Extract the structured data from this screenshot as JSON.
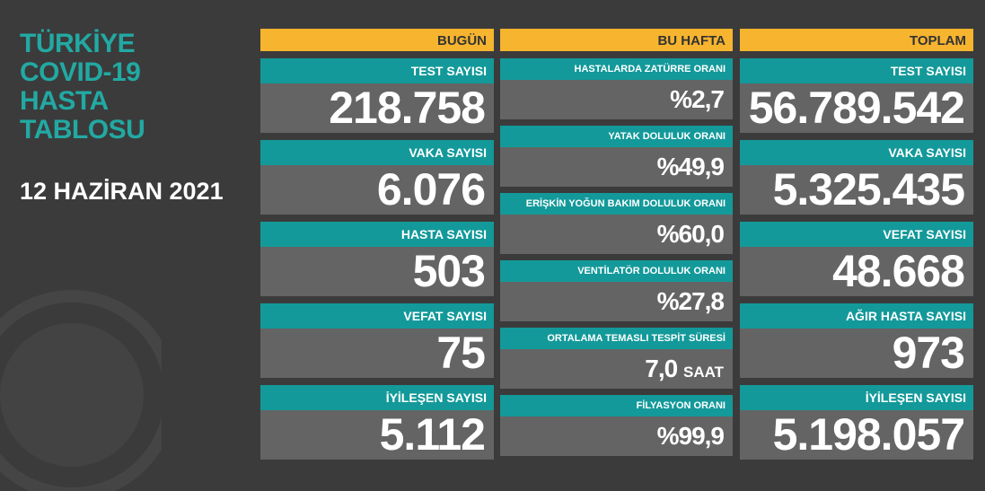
{
  "title": {
    "lines": [
      "TÜRKİYE",
      "COVID-19",
      "HASTA",
      "TABLOSU"
    ]
  },
  "date": "12 HAZİRAN 2021",
  "columns": [
    {
      "header": "BUGÜN",
      "cards": [
        {
          "label": "TEST SAYISI",
          "value": "218.758"
        },
        {
          "label": "VAKA SAYISI",
          "value": "6.076"
        },
        {
          "label": "HASTA SAYISI",
          "value": "503"
        },
        {
          "label": "VEFAT SAYISI",
          "value": "75"
        },
        {
          "label": "İYİLEŞEN SAYISI",
          "value": "5.112"
        }
      ]
    },
    {
      "header": "BU HAFTA",
      "cards": [
        {
          "label": "HASTALARDA ZATÜRRE ORANI",
          "value": "%2,7"
        },
        {
          "label": "YATAK DOLULUK ORANI",
          "value": "%49,9"
        },
        {
          "label": "ERİŞKİN YOĞUN BAKIM DOLULUK ORANI",
          "value": "%60,0"
        },
        {
          "label": "VENTİLATÖR DOLULUK ORANI",
          "value": "%27,8"
        },
        {
          "label": "ORTALAMA TEMASLI TESPİT SÜRESİ",
          "value": "7,0",
          "unit": "SAAT"
        },
        {
          "label": "FİLYASYON ORANI",
          "value": "%99,9"
        }
      ]
    },
    {
      "header": "TOPLAM",
      "cards": [
        {
          "label": "TEST SAYISI",
          "value": "56.789.542"
        },
        {
          "label": "VAKA SAYISI",
          "value": "5.325.435"
        },
        {
          "label": "VEFAT SAYISI",
          "value": "48.668"
        },
        {
          "label": "AĞIR HASTA SAYISI",
          "value": "973"
        },
        {
          "label": "İYİLEŞEN SAYISI",
          "value": "5.198.057"
        }
      ]
    }
  ]
}
